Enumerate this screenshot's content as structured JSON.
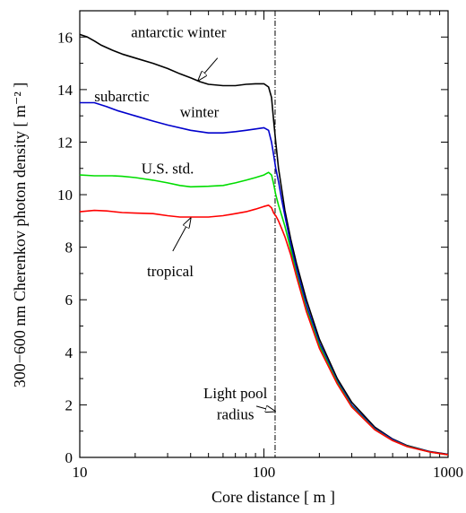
{
  "chart_data": {
    "type": "line",
    "xlabel": "Core distance  [ m ]",
    "ylabel": "300−600 nm Cherenkov photon density  [ m⁻² ]",
    "xscale": "log",
    "xlim": [
      10,
      1000
    ],
    "ylim": [
      0,
      17
    ],
    "x_ticks": [
      10,
      100,
      1000
    ],
    "x_tick_labels": [
      "10",
      "100",
      "1000"
    ],
    "y_ticks": [
      0,
      2,
      4,
      6,
      8,
      10,
      12,
      14,
      16
    ],
    "y_tick_labels": [
      "0",
      "2",
      "4",
      "6",
      "8",
      "10",
      "12",
      "14",
      "16"
    ],
    "grid": false,
    "series": [
      {
        "name": "antarctic winter",
        "color": "#000000",
        "points": [
          [
            10,
            16.1
          ],
          [
            11,
            16.0
          ],
          [
            12,
            15.85
          ],
          [
            13,
            15.7
          ],
          [
            15,
            15.5
          ],
          [
            17,
            15.35
          ],
          [
            20,
            15.2
          ],
          [
            25,
            15.0
          ],
          [
            30,
            14.8
          ],
          [
            35,
            14.6
          ],
          [
            40,
            14.45
          ],
          [
            45,
            14.3
          ],
          [
            50,
            14.2
          ],
          [
            60,
            14.15
          ],
          [
            70,
            14.15
          ],
          [
            80,
            14.2
          ],
          [
            90,
            14.22
          ],
          [
            100,
            14.22
          ],
          [
            106,
            14.1
          ],
          [
            110,
            13.7
          ],
          [
            113,
            12.8
          ],
          [
            116,
            12.0
          ],
          [
            120,
            11.0
          ],
          [
            125,
            10.2
          ],
          [
            130,
            9.4
          ],
          [
            140,
            8.3
          ],
          [
            150,
            7.4
          ],
          [
            170,
            6.0
          ],
          [
            200,
            4.5
          ],
          [
            250,
            3.0
          ],
          [
            300,
            2.1
          ],
          [
            400,
            1.15
          ],
          [
            500,
            0.7
          ],
          [
            600,
            0.45
          ],
          [
            800,
            0.22
          ],
          [
            1000,
            0.12
          ]
        ]
      },
      {
        "name": "subarctic winter",
        "color": "#0000cc",
        "points": [
          [
            10,
            13.5
          ],
          [
            11,
            13.5
          ],
          [
            12,
            13.5
          ],
          [
            14,
            13.35
          ],
          [
            16,
            13.2
          ],
          [
            20,
            13.0
          ],
          [
            25,
            12.8
          ],
          [
            30,
            12.65
          ],
          [
            40,
            12.45
          ],
          [
            50,
            12.35
          ],
          [
            60,
            12.35
          ],
          [
            70,
            12.4
          ],
          [
            80,
            12.45
          ],
          [
            90,
            12.5
          ],
          [
            100,
            12.55
          ],
          [
            106,
            12.45
          ],
          [
            110,
            12.0
          ],
          [
            113,
            11.5
          ],
          [
            116,
            11.0
          ],
          [
            120,
            10.5
          ],
          [
            125,
            9.8
          ],
          [
            130,
            9.2
          ],
          [
            140,
            8.1
          ],
          [
            150,
            7.2
          ],
          [
            170,
            5.8
          ],
          [
            200,
            4.35
          ],
          [
            250,
            2.9
          ],
          [
            300,
            2.0
          ],
          [
            400,
            1.1
          ],
          [
            500,
            0.68
          ],
          [
            600,
            0.43
          ],
          [
            800,
            0.21
          ],
          [
            1000,
            0.11
          ]
        ]
      },
      {
        "name": "U.S. std.",
        "color": "#00dd00",
        "points": [
          [
            10,
            10.75
          ],
          [
            12,
            10.72
          ],
          [
            15,
            10.72
          ],
          [
            17,
            10.7
          ],
          [
            20,
            10.65
          ],
          [
            25,
            10.55
          ],
          [
            30,
            10.45
          ],
          [
            35,
            10.35
          ],
          [
            40,
            10.3
          ],
          [
            50,
            10.32
          ],
          [
            60,
            10.35
          ],
          [
            70,
            10.45
          ],
          [
            80,
            10.55
          ],
          [
            90,
            10.65
          ],
          [
            100,
            10.75
          ],
          [
            106,
            10.85
          ],
          [
            110,
            10.75
          ],
          [
            113,
            10.4
          ],
          [
            116,
            10.0
          ],
          [
            120,
            9.6
          ],
          [
            125,
            9.2
          ],
          [
            130,
            8.8
          ],
          [
            140,
            7.9
          ],
          [
            150,
            7.0
          ],
          [
            170,
            5.65
          ],
          [
            200,
            4.25
          ],
          [
            250,
            2.85
          ],
          [
            300,
            1.95
          ],
          [
            400,
            1.07
          ],
          [
            500,
            0.65
          ],
          [
            600,
            0.42
          ],
          [
            800,
            0.2
          ],
          [
            1000,
            0.1
          ]
        ]
      },
      {
        "name": "tropical",
        "color": "#ff0000",
        "points": [
          [
            10,
            9.35
          ],
          [
            12,
            9.4
          ],
          [
            14,
            9.38
          ],
          [
            17,
            9.32
          ],
          [
            20,
            9.3
          ],
          [
            25,
            9.28
          ],
          [
            30,
            9.2
          ],
          [
            35,
            9.15
          ],
          [
            40,
            9.15
          ],
          [
            50,
            9.15
          ],
          [
            60,
            9.2
          ],
          [
            70,
            9.28
          ],
          [
            80,
            9.35
          ],
          [
            90,
            9.45
          ],
          [
            100,
            9.55
          ],
          [
            106,
            9.6
          ],
          [
            110,
            9.5
          ],
          [
            113,
            9.3
          ],
          [
            116,
            9.2
          ],
          [
            120,
            9.0
          ],
          [
            125,
            8.7
          ],
          [
            130,
            8.4
          ],
          [
            140,
            7.7
          ],
          [
            150,
            6.9
          ],
          [
            170,
            5.55
          ],
          [
            200,
            4.15
          ],
          [
            250,
            2.8
          ],
          [
            300,
            1.92
          ],
          [
            400,
            1.05
          ],
          [
            500,
            0.64
          ],
          [
            600,
            0.41
          ],
          [
            800,
            0.2
          ],
          [
            1000,
            0.1
          ]
        ]
      }
    ],
    "vline": {
      "x": 115,
      "style": "dash-dot"
    },
    "annotations": [
      {
        "lines": [
          "antarctic winter"
        ],
        "text_pos": [
          19,
          16.0
        ],
        "anchor": "start",
        "arrow_from": [
          56,
          15.2
        ],
        "arrow_to": [
          44,
          14.35
        ]
      },
      {
        "lines": [
          "subarctic",
          "winter"
        ],
        "text_pos": [
          12,
          13.55
        ],
        "anchor": "start",
        "second_line_pos": [
          35,
          12.95
        ]
      },
      {
        "lines": [
          "U.S. std."
        ],
        "text_pos": [
          30,
          10.8
        ],
        "anchor": "middle"
      },
      {
        "lines": [
          "tropical"
        ],
        "text_pos": [
          31,
          6.9
        ],
        "anchor": "middle",
        "arrow_from": [
          32,
          7.85
        ],
        "arrow_to": [
          40,
          9.1
        ]
      },
      {
        "lines": [
          "Light pool",
          "radius"
        ],
        "text_pos": [
          70,
          2.25
        ],
        "anchor": "middle",
        "second_line_pos": [
          70,
          1.45
        ],
        "arrow_from": [
          91,
          1.95
        ],
        "arrow_to": [
          115,
          1.75
        ]
      }
    ]
  }
}
